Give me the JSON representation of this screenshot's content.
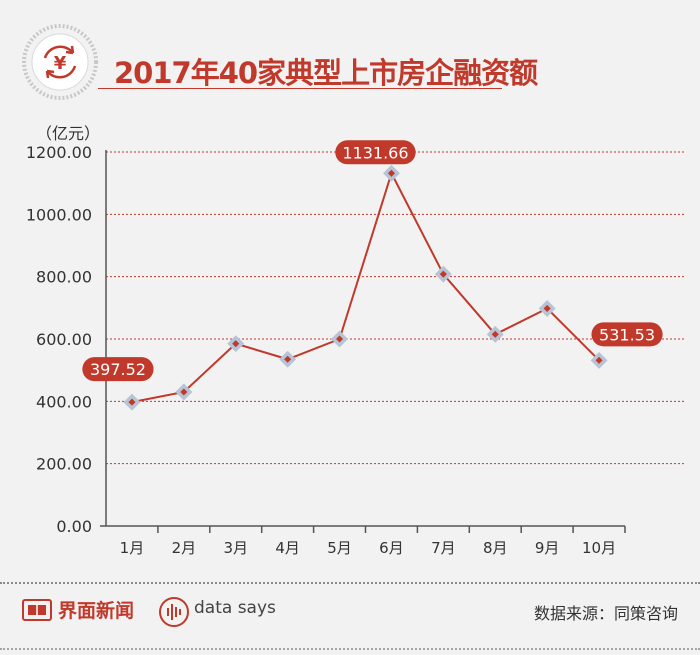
{
  "header": {
    "title": "2017年40家典型上市房企融资额",
    "icon": "yen-cycle-icon"
  },
  "chart_data": {
    "type": "line",
    "unit_label": "（亿元）",
    "categories": [
      "1月",
      "2月",
      "3月",
      "4月",
      "5月",
      "6月",
      "7月",
      "8月",
      "9月",
      "10月"
    ],
    "values": [
      397.52,
      430,
      585,
      535,
      600,
      1131.66,
      808,
      615,
      698,
      531.53
    ],
    "y_ticks": [
      "0.00",
      "200.00",
      "400.00",
      "600.00",
      "800.00",
      "1000.00",
      "1200.00"
    ],
    "ylim": [
      0,
      1200
    ],
    "grid": "horizontal dotted",
    "annotations": [
      {
        "index": 0,
        "label": "397.52"
      },
      {
        "index": 5,
        "label": "1131.66"
      },
      {
        "index": 9,
        "label": "531.53"
      }
    ],
    "colors": {
      "line": "#c0392b",
      "marker_outer": "#b7c4d6",
      "marker_inner": "#c0392b",
      "label_bg": "#c0392b"
    }
  },
  "footer": {
    "brand": "界面新闻",
    "says": "data says",
    "source": "数据来源：同策咨询"
  }
}
